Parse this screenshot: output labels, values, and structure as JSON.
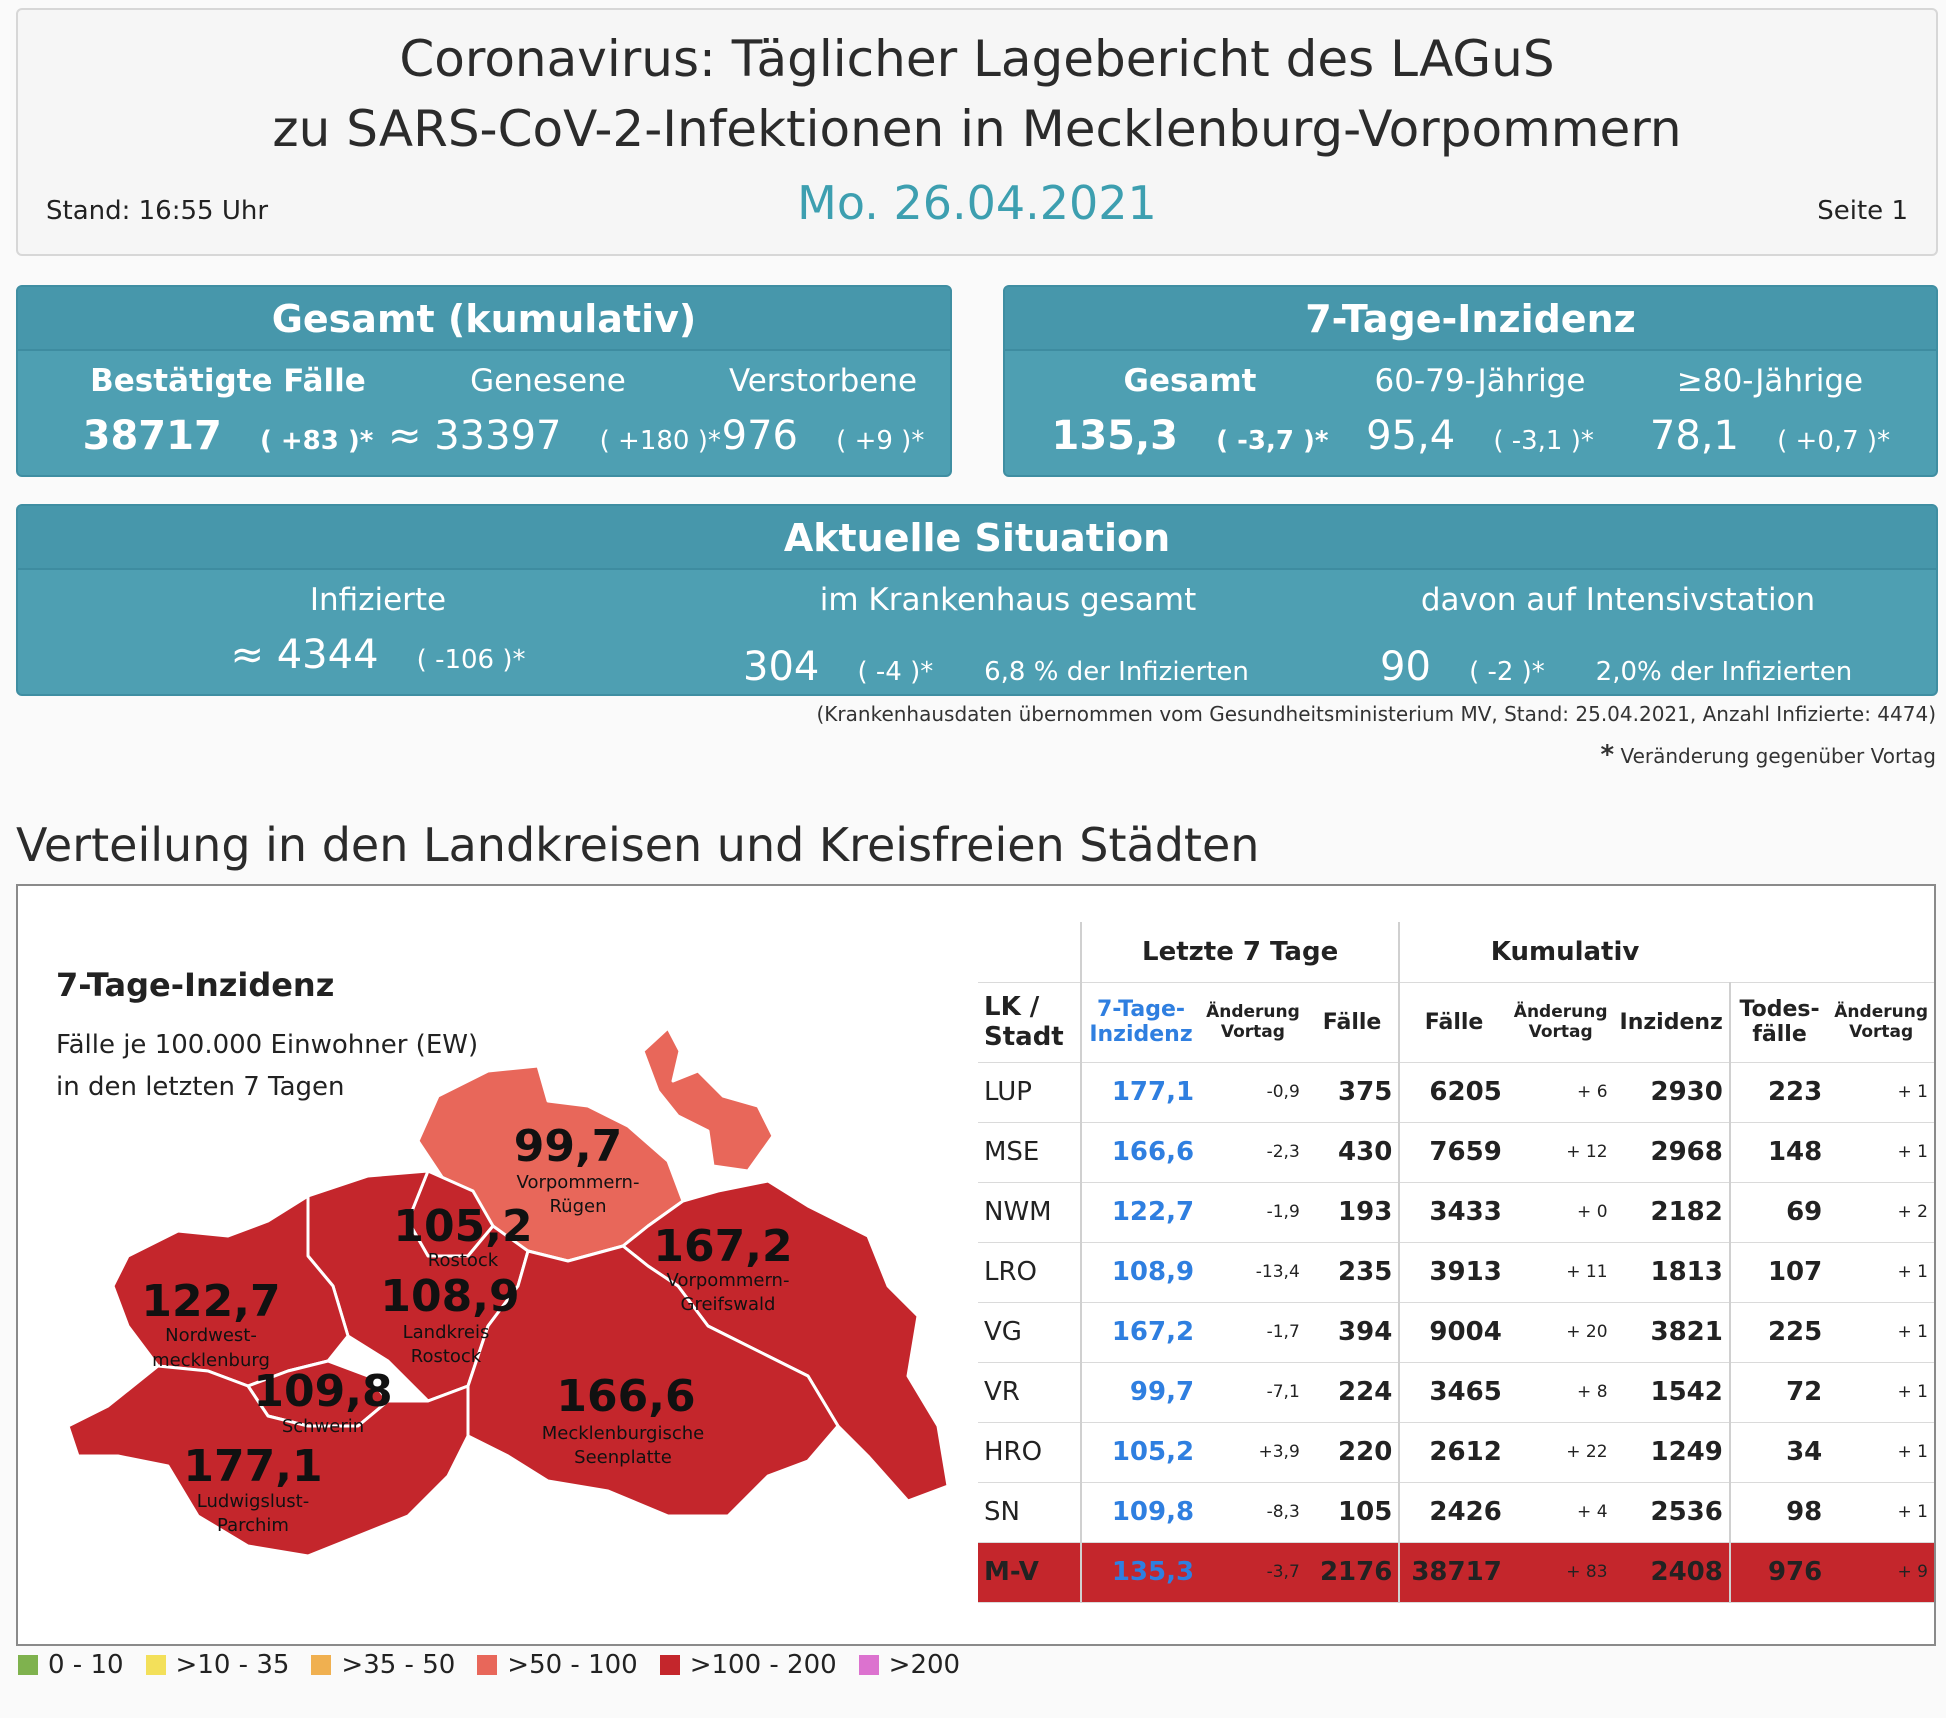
{
  "header": {
    "title_line1": "Coronavirus: Täglicher Lagebericht des LAGuS",
    "title_line2": "zu SARS-CoV-2-Infektionen in Mecklenburg-Vorpommern",
    "date": "Mo. 26.04.2021",
    "stand": "Stand: 16:55 Uhr",
    "page": "Seite 1"
  },
  "gesamt": {
    "title": "Gesamt (kumulativ)",
    "faelle_label": "Bestätigte Fälle",
    "faelle_value": "38717",
    "faelle_delta": "( +83 )*",
    "genesene_label": "Genesene",
    "genesene_value": "≈ 33397",
    "genesene_delta": "( +180 )*",
    "verstorbene_label": "Verstorbene",
    "verstorbene_value": "976",
    "verstorbene_delta": "( +9 )*"
  },
  "inzidenz": {
    "title": "7-Tage-Inzidenz",
    "gesamt_label": "Gesamt",
    "gesamt_value": "135,3",
    "gesamt_delta": "( -3,7 )*",
    "a6079_label": "60-79-Jährige",
    "a6079_value": "95,4",
    "a6079_delta": "( -3,1 )*",
    "a80_label": "≥80-Jährige",
    "a80_value": "78,1",
    "a80_delta": "( +0,7 )*"
  },
  "situation": {
    "title": "Aktuelle Situation",
    "infizierte_label": "Infizierte",
    "infizierte_value": "≈ 4344",
    "infizierte_delta": "( -106 )*",
    "kh_label": "im Krankenhaus gesamt",
    "kh_value": "304",
    "kh_delta": "( -4 )*",
    "kh_pct": "6,8 % der Infizierten",
    "its_label": "davon auf Intensivstation",
    "its_value": "90",
    "its_delta": "( -2 )*",
    "its_pct": "2,0% der Infizierten"
  },
  "notes": {
    "kh_source": "(Krankenhausdaten übernommen vom Gesundheitsministerium MV, Stand: 25.04.2021, Anzahl Infizierte: 4474)",
    "star": "*",
    "change": "Veränderung gegenüber Vortag"
  },
  "section_title": "Verteilung in den Landkreisen und Kreisfreien Städten",
  "map": {
    "title": "7-Tage-Inzidenz",
    "sub1": "Fälle je 100.000 Einwohner (EW)",
    "sub2": "in den letzten 7 Tagen",
    "labels": {
      "vr_value": "99,7",
      "vr_name1": "Vorpommern-",
      "vr_name2": "Rügen",
      "hro_value": "105,2",
      "hro_name": "Rostock",
      "vg_value": "167,2",
      "vg_name1": "Vorpommern-",
      "vg_name2": "Greifswald",
      "nwm_value": "122,7",
      "nwm_name1": "Nordwest-",
      "nwm_name2": "mecklenburg",
      "lro_value": "108,9",
      "lro_name1": "Landkreis",
      "lro_name2": "Rostock",
      "sn_value": "109,8",
      "sn_name": "Schwerin",
      "mse_value": "166,6",
      "mse_name1": "Mecklenburgische",
      "mse_name2": "Seenplatte",
      "lup_value": "177,1",
      "lup_name1": "Ludwigslust-",
      "lup_name2": "Parchim"
    },
    "colors": {
      "high": "#c4262c",
      "mid": "#e8675a",
      "border": "#ffffff"
    }
  },
  "table": {
    "group_7tage": "Letzte 7 Tage",
    "group_kum": "Kumulativ",
    "col_lk1": "LK /",
    "col_lk2": "Stadt",
    "col_inz1": "7-Tage-",
    "col_inz2": "Inzidenz",
    "col_aend1": "Änderung",
    "col_aend2": "Vortag",
    "col_faelle": "Fälle",
    "col_inzidenz": "Inzidenz",
    "col_tod1": "Todes-",
    "col_tod2": "fälle",
    "rows": [
      {
        "lk": "LUP",
        "inz": "177,1",
        "inz_ch": "-0,9",
        "f7": "375",
        "faelle": "6205",
        "faelle_ch": "+ 6",
        "inzk": "2930",
        "tod": "223",
        "tod_ch": "+ 1"
      },
      {
        "lk": "MSE",
        "inz": "166,6",
        "inz_ch": "-2,3",
        "f7": "430",
        "faelle": "7659",
        "faelle_ch": "+ 12",
        "inzk": "2968",
        "tod": "148",
        "tod_ch": "+ 1"
      },
      {
        "lk": "NWM",
        "inz": "122,7",
        "inz_ch": "-1,9",
        "f7": "193",
        "faelle": "3433",
        "faelle_ch": "+ 0",
        "inzk": "2182",
        "tod": "69",
        "tod_ch": "+ 2"
      },
      {
        "lk": "LRO",
        "inz": "108,9",
        "inz_ch": "-13,4",
        "f7": "235",
        "faelle": "3913",
        "faelle_ch": "+ 11",
        "inzk": "1813",
        "tod": "107",
        "tod_ch": "+ 1"
      },
      {
        "lk": "VG",
        "inz": "167,2",
        "inz_ch": "-1,7",
        "f7": "394",
        "faelle": "9004",
        "faelle_ch": "+ 20",
        "inzk": "3821",
        "tod": "225",
        "tod_ch": "+ 1"
      },
      {
        "lk": "VR",
        "inz": "99,7",
        "inz_ch": "-7,1",
        "f7": "224",
        "faelle": "3465",
        "faelle_ch": "+ 8",
        "inzk": "1542",
        "tod": "72",
        "tod_ch": "+ 1"
      },
      {
        "lk": "HRO",
        "inz": "105,2",
        "inz_ch": "+3,9",
        "f7": "220",
        "faelle": "2612",
        "faelle_ch": "+ 22",
        "inzk": "1249",
        "tod": "34",
        "tod_ch": "+ 1"
      },
      {
        "lk": "SN",
        "inz": "109,8",
        "inz_ch": "-8,3",
        "f7": "105",
        "faelle": "2426",
        "faelle_ch": "+ 4",
        "inzk": "2536",
        "tod": "98",
        "tod_ch": "+ 1"
      }
    ],
    "total": {
      "lk": "M-V",
      "inz": "135,3",
      "inz_ch": "-3,7",
      "f7": "2176",
      "faelle": "38717",
      "faelle_ch": "+ 83",
      "inzk": "2408",
      "tod": "976",
      "tod_ch": "+ 9"
    }
  },
  "legend": [
    {
      "label": "0 - 10",
      "color": "#7fb24e"
    },
    {
      "label": ">10 - 35",
      "color": "#f3e05a"
    },
    {
      "label": ">35 - 50",
      "color": "#f0b050"
    },
    {
      "label": ">50 - 100",
      "color": "#e8675a"
    },
    {
      "label": ">100 - 200",
      "color": "#c4262c"
    },
    {
      "label": ">200",
      "color": "#dc72cf"
    }
  ]
}
